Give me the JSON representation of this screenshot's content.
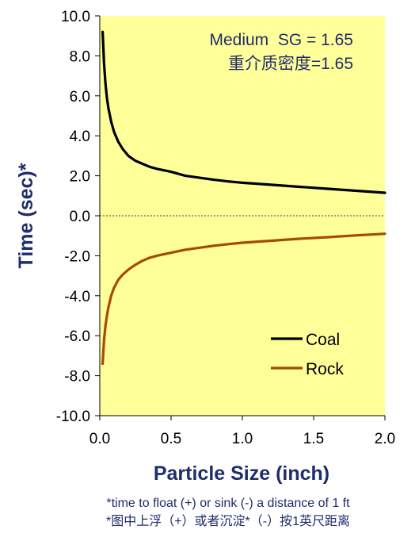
{
  "chart_data": {
    "type": "line",
    "xlabel": "Particle Size (inch)",
    "ylabel": "Time (sec)*",
    "xlim": [
      0.0,
      2.0
    ],
    "ylim": [
      -10.0,
      10.0
    ],
    "x_ticks": [
      "0.0",
      "0.5",
      "1.0",
      "1.5",
      "2.0"
    ],
    "y_ticks": [
      "10.0",
      "8.0",
      "6.0",
      "4.0",
      "2.0",
      "0.0",
      "-2.0",
      "-4.0",
      "-6.0",
      "-8.0",
      "-10.0"
    ],
    "grid": false,
    "zero_line": "dotted",
    "legend_position": "bottom-right",
    "background_color": "#FFFF99",
    "annotation_lines": [
      "Medium  SG = 1.65",
      "重介质密度=1.65"
    ],
    "annotation_color": "#1F2D6B",
    "axis_label_color": "#1F2D6B",
    "series": [
      {
        "name": "Coal",
        "color": "#000000",
        "x": [
          0.02,
          0.03,
          0.04,
          0.05,
          0.06,
          0.08,
          0.1,
          0.13,
          0.16,
          0.2,
          0.25,
          0.3,
          0.35,
          0.4,
          0.5,
          0.6,
          0.7,
          0.8,
          0.9,
          1.0,
          1.2,
          1.4,
          1.6,
          1.8,
          2.0
        ],
        "y": [
          9.2,
          7.6,
          6.6,
          5.9,
          5.4,
          4.7,
          4.2,
          3.7,
          3.35,
          3.0,
          2.75,
          2.6,
          2.45,
          2.35,
          2.2,
          2.0,
          1.9,
          1.8,
          1.72,
          1.65,
          1.55,
          1.45,
          1.35,
          1.25,
          1.15
        ]
      },
      {
        "name": "Rock",
        "color": "#A64B00",
        "x": [
          0.02,
          0.03,
          0.04,
          0.05,
          0.06,
          0.08,
          0.1,
          0.13,
          0.16,
          0.2,
          0.25,
          0.3,
          0.35,
          0.4,
          0.5,
          0.6,
          0.7,
          0.8,
          0.9,
          1.0,
          1.2,
          1.4,
          1.6,
          1.8,
          2.0
        ],
        "y": [
          -7.4,
          -6.2,
          -5.5,
          -5.0,
          -4.6,
          -4.0,
          -3.6,
          -3.2,
          -2.95,
          -2.7,
          -2.45,
          -2.25,
          -2.1,
          -2.0,
          -1.85,
          -1.7,
          -1.6,
          -1.5,
          -1.42,
          -1.35,
          -1.25,
          -1.15,
          -1.07,
          -0.98,
          -0.9
        ]
      }
    ]
  },
  "footnote_lines": [
    "*time to float (+) or sink (-) a distance of 1 ft",
    "*图中上浮（+）或者沉淀*（-）按1英尺距离"
  ]
}
